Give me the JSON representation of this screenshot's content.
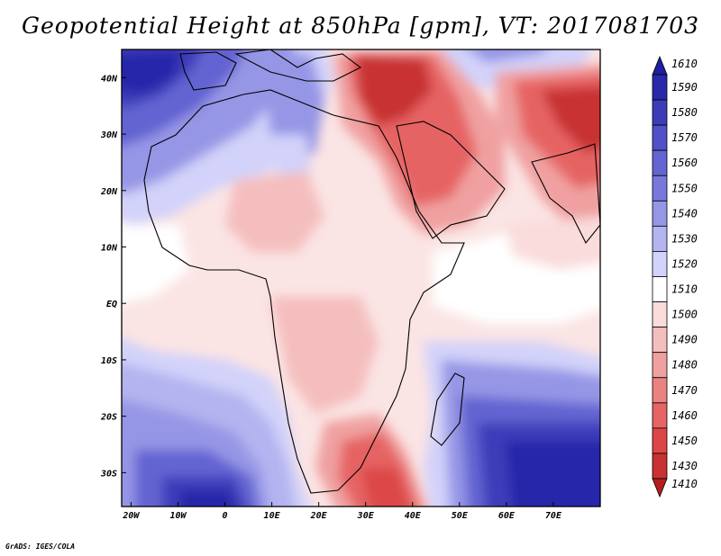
{
  "title": "Geopotential Height at 850hPa [gpm], VT: 2017081703",
  "credit": "GrADS: IGES/COLA",
  "map": {
    "variable": "Geopotential Height",
    "level": "850hPa",
    "units": "gpm",
    "valid_time": "2017081703",
    "lon_range": [
      -22,
      80
    ],
    "lat_range": [
      -36,
      45
    ],
    "x_ticks": [
      {
        "value": -20,
        "label": "20W"
      },
      {
        "value": -10,
        "label": "10W"
      },
      {
        "value": 0,
        "label": "0"
      },
      {
        "value": 10,
        "label": "10E"
      },
      {
        "value": 20,
        "label": "20E"
      },
      {
        "value": 30,
        "label": "30E"
      },
      {
        "value": 40,
        "label": "40E"
      },
      {
        "value": 50,
        "label": "50E"
      },
      {
        "value": 60,
        "label": "60E"
      },
      {
        "value": 70,
        "label": "70E"
      }
    ],
    "y_ticks": [
      {
        "value": 40,
        "label": "40N"
      },
      {
        "value": 30,
        "label": "30N"
      },
      {
        "value": 20,
        "label": "20N"
      },
      {
        "value": 10,
        "label": "10N"
      },
      {
        "value": 0,
        "label": "EQ"
      },
      {
        "value": -10,
        "label": "10S"
      },
      {
        "value": -20,
        "label": "20S"
      },
      {
        "value": -30,
        "label": "30S"
      }
    ]
  },
  "colorbar": {
    "levels": [
      {
        "label": "1610",
        "color": "#1e1ea0"
      },
      {
        "label": "1590",
        "color": "#2828aa"
      },
      {
        "label": "1580",
        "color": "#3c3cb9"
      },
      {
        "label": "1570",
        "color": "#5050c8"
      },
      {
        "label": "1560",
        "color": "#6464d2"
      },
      {
        "label": "1550",
        "color": "#7878dc"
      },
      {
        "label": "1540",
        "color": "#9696e6"
      },
      {
        "label": "1530",
        "color": "#b4b4f0"
      },
      {
        "label": "1520",
        "color": "#d2d2fa"
      },
      {
        "label": "1510",
        "color": "#ffffff"
      },
      {
        "label": "1500",
        "color": "#fadcdc"
      },
      {
        "label": "1490",
        "color": "#f5bebe"
      },
      {
        "label": "1480",
        "color": "#f0a0a0"
      },
      {
        "label": "1470",
        "color": "#eb8282"
      },
      {
        "label": "1460",
        "color": "#e66464"
      },
      {
        "label": "1450",
        "color": "#dc4646"
      },
      {
        "label": "1430",
        "color": "#c83232"
      },
      {
        "label": "1410",
        "color": "#b41e1e"
      }
    ]
  },
  "regions": {
    "blue_centers": [
      "North Atlantic / Mediterranean",
      "South Atlantic",
      "South Indian Ocean"
    ],
    "red_centers": [
      "Middle East / Arabia",
      "Iran / Pakistan",
      "Southeast Africa / Mozambique Channel"
    ]
  }
}
